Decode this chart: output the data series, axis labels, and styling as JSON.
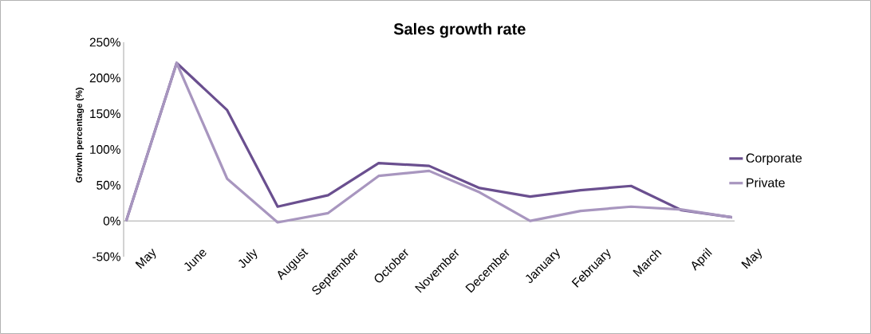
{
  "chart_data": {
    "type": "line",
    "title": "Sales growth rate",
    "ylabel": "Growth percentage (%)",
    "categories": [
      "May",
      "June",
      "July",
      "August",
      "September",
      "October",
      "November",
      "December",
      "January",
      "February",
      "March",
      "April",
      "May"
    ],
    "series": [
      {
        "name": "Corporate",
        "color": "#6a4f8f",
        "values": [
          0,
          221,
          155,
          20,
          36,
          81,
          77,
          46,
          34,
          43,
          49,
          15,
          5
        ]
      },
      {
        "name": "Private",
        "color": "#a896bf",
        "values": [
          0,
          221,
          59,
          -2,
          11,
          63,
          70,
          40,
          0,
          14,
          20,
          16,
          5
        ]
      }
    ],
    "ylim": [
      -50,
      250
    ],
    "yticks": [
      {
        "value": -50,
        "label": "-50%"
      },
      {
        "value": 0,
        "label": "0%"
      },
      {
        "value": 50,
        "label": "50%"
      },
      {
        "value": 100,
        "label": "100%"
      },
      {
        "value": 150,
        "label": "150%"
      },
      {
        "value": 200,
        "label": "200%"
      },
      {
        "value": 250,
        "label": "250%"
      }
    ],
    "grid": false,
    "legend": "right",
    "marker": "none",
    "line_style": "solid"
  }
}
